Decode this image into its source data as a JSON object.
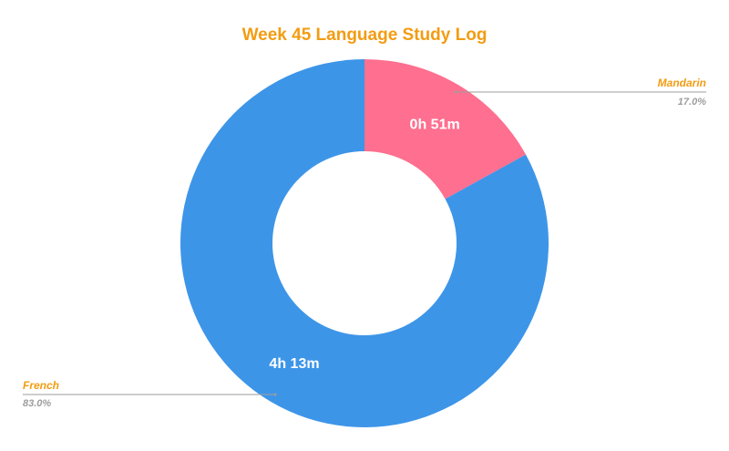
{
  "chart_data": {
    "type": "pie",
    "donut": true,
    "title": "Week 45 Language Study Log",
    "slices": [
      {
        "name": "Mandarin",
        "value": 17.0,
        "percent_label": "17.0%",
        "duration_label": "0h 51m",
        "color": "#ff6f8f"
      },
      {
        "name": "French",
        "value": 83.0,
        "percent_label": "83.0%",
        "duration_label": "4h 13m",
        "color": "#3d95e8"
      }
    ],
    "legend": "callouts"
  },
  "colors": {
    "title": "#f39c12",
    "legend_name": "#f39c12",
    "legend_pct": "#9e9e9e",
    "leader": "#9e9e9e"
  }
}
